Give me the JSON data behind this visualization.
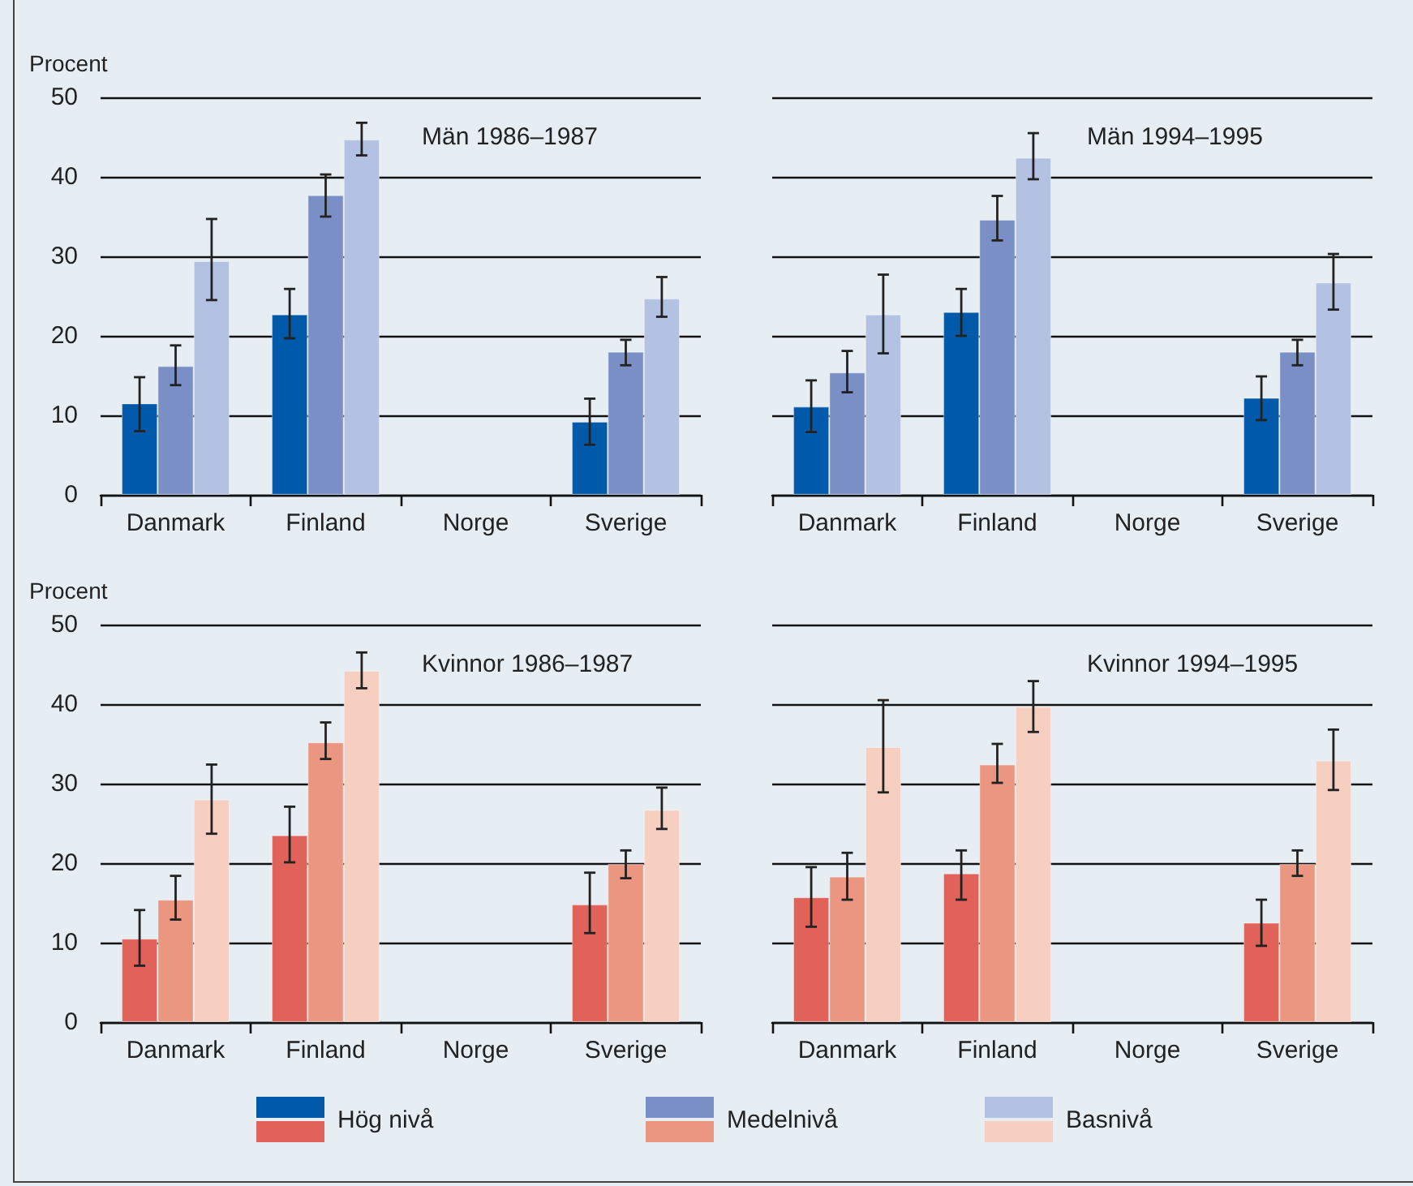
{
  "chart_data": [
    {
      "type": "bar",
      "title": "Män 1986–1987",
      "ylabel": "Procent",
      "categories": [
        "Danmark",
        "Finland",
        "Norge",
        "Sverige"
      ],
      "ylim": [
        0,
        50
      ],
      "yticks": [
        0,
        10,
        20,
        30,
        40,
        50
      ],
      "grid": "y",
      "legend": "bottom",
      "series": [
        {
          "name": "Hög nivå",
          "color": "#005aa9",
          "values": [
            11.5,
            22.7,
            null,
            9.2
          ],
          "errors": [
            [
              8.0,
              14.8
            ],
            [
              19.7,
              25.9
            ],
            null,
            [
              6.3,
              12.1
            ]
          ]
        },
        {
          "name": "Medelnivå",
          "color": "#7a8fc6",
          "values": [
            16.2,
            37.7,
            null,
            18.0
          ],
          "errors": [
            [
              13.8,
              18.8
            ],
            [
              35.0,
              40.3
            ],
            null,
            [
              16.3,
              19.5
            ]
          ]
        },
        {
          "name": "Basnivå",
          "color": "#b3c2e2",
          "values": [
            29.4,
            44.7,
            null,
            24.7
          ],
          "errors": [
            [
              24.5,
              34.7
            ],
            [
              42.7,
              46.8
            ],
            null,
            [
              22.4,
              27.4
            ]
          ]
        }
      ]
    },
    {
      "type": "bar",
      "title": "Män 1994–1995",
      "categories": [
        "Danmark",
        "Finland",
        "Norge",
        "Sverige"
      ],
      "ylim": [
        0,
        50
      ],
      "yticks": [
        0,
        10,
        20,
        30,
        40,
        50
      ],
      "grid": "y",
      "tick_labels": "x",
      "series": [
        {
          "color": "#005aa9",
          "values": [
            11.1,
            23.0,
            null,
            12.2
          ],
          "errors": [
            [
              7.9,
              14.4
            ],
            [
              20.0,
              25.9
            ],
            null,
            [
              9.4,
              14.9
            ]
          ]
        },
        {
          "color": "#7a8fc6",
          "values": [
            15.4,
            34.6,
            null,
            18.0
          ],
          "errors": [
            [
              12.9,
              18.1
            ],
            [
              32.0,
              37.6
            ],
            null,
            [
              16.3,
              19.5
            ]
          ]
        },
        {
          "color": "#b3c2e2",
          "values": [
            22.7,
            42.4,
            null,
            26.7
          ],
          "errors": [
            [
              17.8,
              27.7
            ],
            [
              39.7,
              45.5
            ],
            null,
            [
              23.3,
              30.3
            ]
          ]
        }
      ]
    },
    {
      "type": "bar",
      "title": "Kvinnor 1986–1987",
      "ylabel": "Procent",
      "categories": [
        "Danmark",
        "Finland",
        "Norge",
        "Sverige"
      ],
      "ylim": [
        0,
        50
      ],
      "yticks": [
        0,
        10,
        20,
        30,
        40,
        50
      ],
      "grid": "y",
      "series": [
        {
          "color": "#e06258",
          "values": [
            10.5,
            23.5,
            null,
            14.8
          ],
          "errors": [
            [
              7.1,
              14.1
            ],
            [
              20.1,
              27.1
            ],
            null,
            [
              11.2,
              18.8
            ]
          ]
        },
        {
          "color": "#eb9681",
          "values": [
            15.4,
            35.2,
            null,
            19.9
          ],
          "errors": [
            [
              12.9,
              18.4
            ],
            [
              33.1,
              37.7
            ],
            null,
            [
              18.1,
              21.6
            ]
          ]
        },
        {
          "color": "#f6cfc0",
          "values": [
            28.0,
            44.2,
            null,
            26.7
          ],
          "errors": [
            [
              23.7,
              32.4
            ],
            [
              42.0,
              46.5
            ],
            null,
            [
              24.3,
              29.5
            ]
          ]
        }
      ]
    },
    {
      "type": "bar",
      "title": "Kvinnor 1994–1995",
      "categories": [
        "Danmark",
        "Finland",
        "Norge",
        "Sverige"
      ],
      "ylim": [
        0,
        50
      ],
      "yticks": [
        0,
        10,
        20,
        30,
        40,
        50
      ],
      "grid": "y",
      "tick_labels": "x",
      "series": [
        {
          "color": "#e06258",
          "values": [
            15.7,
            18.7,
            null,
            12.5
          ],
          "errors": [
            [
              12.0,
              19.5
            ],
            [
              15.4,
              21.6
            ],
            null,
            [
              9.6,
              15.4
            ]
          ]
        },
        {
          "color": "#eb9681",
          "values": [
            18.3,
            32.4,
            null,
            19.9
          ],
          "errors": [
            [
              15.4,
              21.3
            ],
            [
              30.1,
              35.0
            ],
            null,
            [
              18.4,
              21.6
            ]
          ]
        },
        {
          "color": "#f6cfc0",
          "values": [
            34.6,
            39.7,
            null,
            32.9
          ],
          "errors": [
            [
              28.9,
              40.5
            ],
            [
              36.5,
              42.9
            ],
            null,
            [
              29.2,
              36.8
            ]
          ]
        }
      ]
    }
  ]
}
